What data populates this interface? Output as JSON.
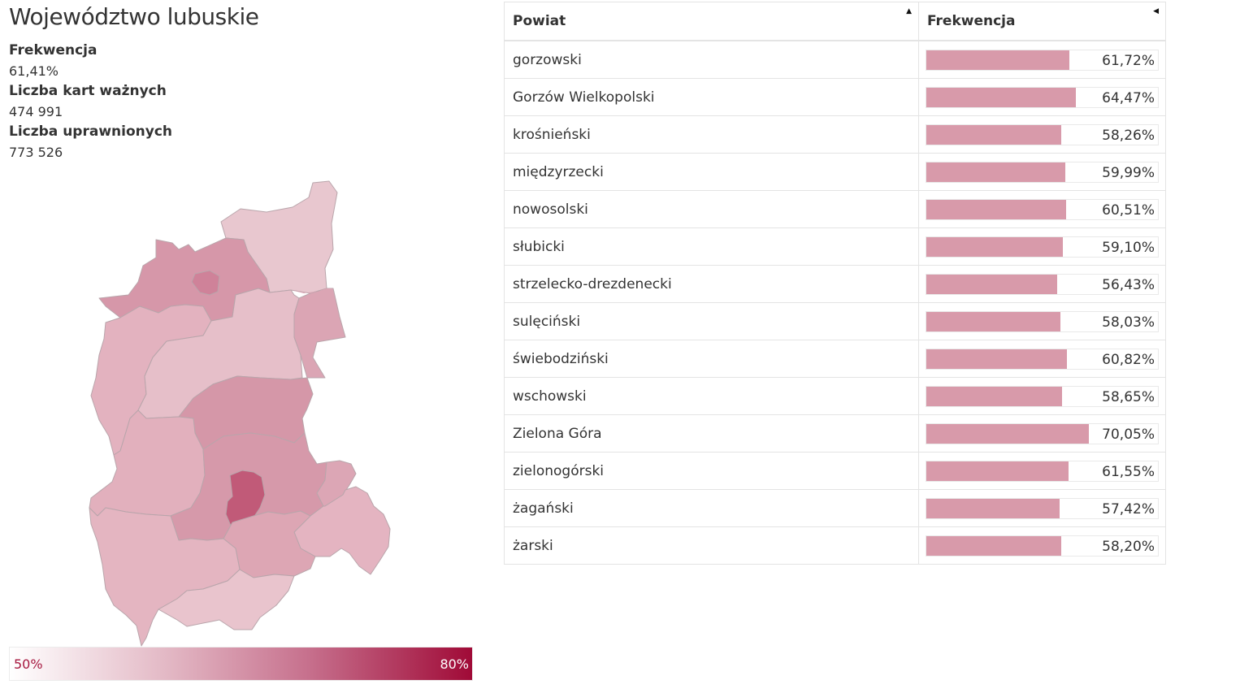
{
  "region": {
    "title": "Województwo lubuskie",
    "stats": [
      {
        "label": "Frekwencja",
        "value": "61,41%"
      },
      {
        "label": "Liczba kart ważnych",
        "value": "474 991"
      },
      {
        "label": "Liczba uprawnionych",
        "value": "773 526"
      }
    ]
  },
  "legend": {
    "min": "50%",
    "max": "80%"
  },
  "colors": {
    "bar": "#d89aaa",
    "legend_low": "#ffffff",
    "legend_high": "#a00a37"
  },
  "table": {
    "headers": {
      "powiat": "Powiat",
      "frekwencja": "Frekwencja"
    },
    "rows": [
      {
        "name": "gorzowski",
        "value_text": "61,72%",
        "value": 61.72
      },
      {
        "name": "Gorzów Wielkopolski",
        "value_text": "64,47%",
        "value": 64.47
      },
      {
        "name": "krośnieński",
        "value_text": "58,26%",
        "value": 58.26
      },
      {
        "name": "międzyrzecki",
        "value_text": "59,99%",
        "value": 59.99
      },
      {
        "name": "nowosolski",
        "value_text": "60,51%",
        "value": 60.51
      },
      {
        "name": "słubicki",
        "value_text": "59,10%",
        "value": 59.1
      },
      {
        "name": "strzelecko-drezdenecki",
        "value_text": "56,43%",
        "value": 56.43
      },
      {
        "name": "sulęciński",
        "value_text": "58,03%",
        "value": 58.03
      },
      {
        "name": "świebodziński",
        "value_text": "60,82%",
        "value": 60.82
      },
      {
        "name": "wschowski",
        "value_text": "58,65%",
        "value": 58.65
      },
      {
        "name": "Zielona Góra",
        "value_text": "70,05%",
        "value": 70.05
      },
      {
        "name": "zielonogórski",
        "value_text": "61,55%",
        "value": 61.55
      },
      {
        "name": "żagański",
        "value_text": "57,42%",
        "value": 57.42
      },
      {
        "name": "żarski",
        "value_text": "58,20%",
        "value": 58.2
      }
    ]
  }
}
